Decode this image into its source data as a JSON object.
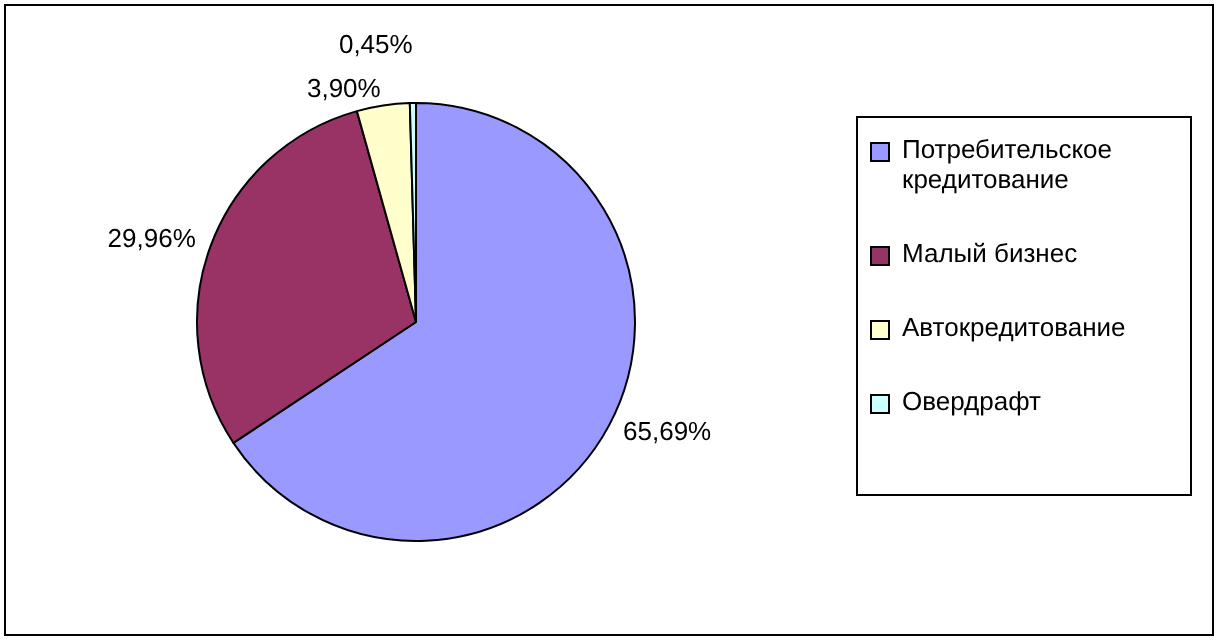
{
  "chart_data": {
    "type": "pie",
    "categories": [
      "Потребительское кредитование",
      "Малый бизнес",
      "Автокредитование",
      "Овердрафт"
    ],
    "values": [
      65.69,
      29.96,
      3.9,
      0.45
    ],
    "colors": [
      "#9999ff",
      "#993366",
      "#ffffcc",
      "#ccffff"
    ],
    "value_labels": [
      "65,69%",
      "29,96%",
      "3,90%",
      "0,45%"
    ],
    "legend": "right"
  }
}
